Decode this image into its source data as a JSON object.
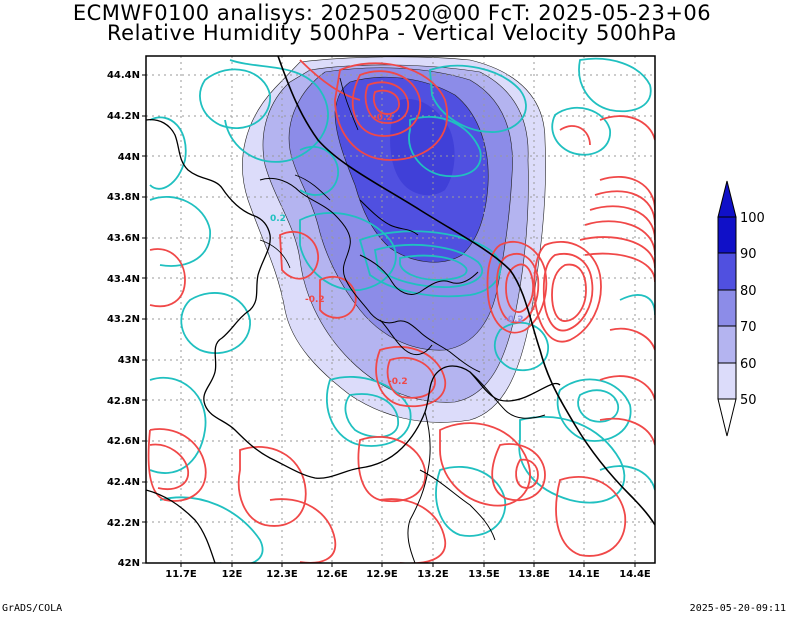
{
  "title_line1": "ECMWF0100 analisys: 20250520@00 FcT: 2025-05-23+06",
  "title_line2": "Relative Humidity 500hPa - Vertical Velocity 500hPa",
  "footer_left": "GrADS/COLA",
  "footer_right": "2025-05-20-09:11",
  "map": {
    "lon_range": [
      11.5,
      14.55
    ],
    "lat_range": [
      42.0,
      44.5
    ],
    "lon_ticks": [
      "11.7E",
      "12E",
      "12.3E",
      "12.6E",
      "12.9E",
      "13.2E",
      "13.5E",
      "13.8E",
      "14.1E",
      "14.4E"
    ],
    "lat_ticks": [
      "42N",
      "42.2N",
      "42.4N",
      "42.6N",
      "42.8N",
      "43N",
      "43.2N",
      "43.4N",
      "43.6N",
      "43.8N",
      "44N",
      "44.2N",
      "44.4N"
    ],
    "contour_labels": [
      "-0.2",
      "0.2",
      "-0.2",
      "-0.2",
      "-0.2"
    ],
    "colors": {
      "positive_velocity": "#f04848",
      "negative_velocity": "#20c0c0",
      "humidity_50": "#ffffff",
      "humidity_60": "#dcdcfa",
      "humidity_70": "#b4b4f0",
      "humidity_80": "#8c8ce8",
      "humidity_90": "#5050e0",
      "humidity_100": "#1010c8"
    }
  },
  "colorbar": {
    "labels": [
      "100",
      "90",
      "80",
      "70",
      "60",
      "50"
    ],
    "colors": [
      "#1010c8",
      "#5050e0",
      "#8c8ce8",
      "#b4b4f0",
      "#dcdcfa",
      "#ffffff"
    ]
  }
}
